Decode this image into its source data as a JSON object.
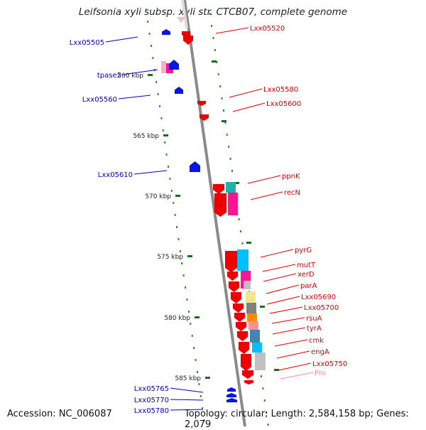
{
  "title": "Leifsonia xyli subsp. xyli str. CTCB07, complete genome",
  "accession": "Accession: NC_006087",
  "topology": "Topology: circular; Length: 2,584,158 bp; Genes: 2,079",
  "ruler": [
    "560 kbp",
    "565 kbp",
    "570 kbp",
    "575 kbp",
    "580 kbp",
    "585 kbp"
  ],
  "colors": {
    "backbone": "#8a8a8a",
    "dots": "#2e8b2e",
    "tick": "#1a6e1a",
    "label_left": "#0000c8",
    "label_right": "#dd0000",
    "label_pro": "#ff88aa",
    "arrow_left": "#0a14e6",
    "arrow_right": "#ee0000"
  },
  "left_genes": [
    "Lxx05505",
    "tpase2",
    "Lxx05560",
    "Lxx05610",
    "Lxx05765",
    "Lxx05770",
    "Lxx05780"
  ],
  "right_genes": [
    "Lxx05520",
    "Lxx05580",
    "Lxx05600",
    "ppnK",
    "recN",
    "pyrG",
    "mutT",
    "xerD",
    "parA",
    "Lxx05690",
    "Lxx05700",
    "rsuA",
    "tyrA",
    "cmk",
    "engA",
    "Lxx05750",
    "Pro"
  ],
  "function_colors": [
    "#f0b4c8",
    "#ff1493",
    "#20b2aa",
    "#ff1493",
    "#00bfff",
    "#ff1493",
    "#c0c0c0",
    "#f0e68c",
    "#808080",
    "#ff8c00",
    "#ff9090",
    "#4682b4",
    "#00bfff",
    "#c0c0c0"
  ]
}
